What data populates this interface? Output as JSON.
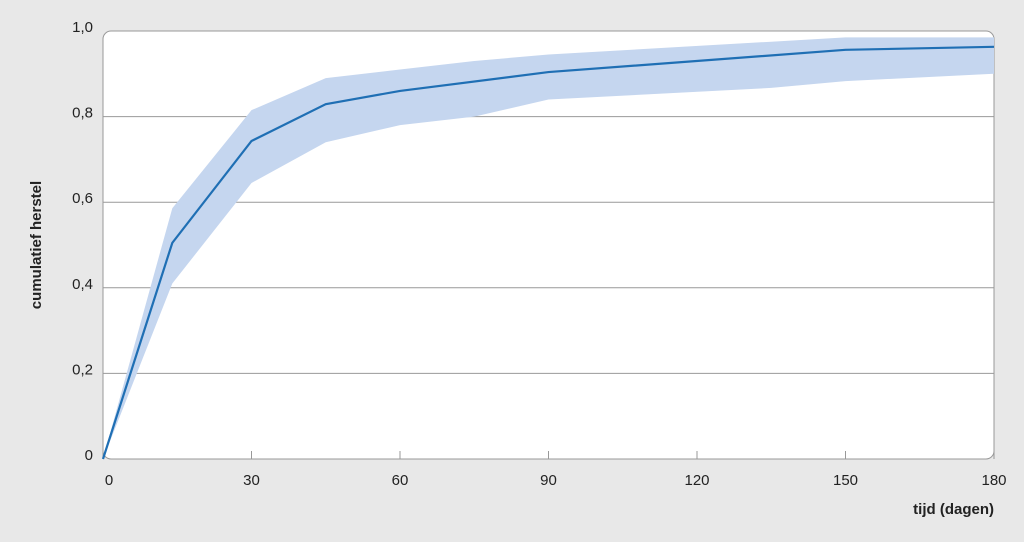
{
  "chart_data": {
    "type": "line",
    "xlabel": "tijd (dagen)",
    "ylabel": "cumulatief herstel",
    "series": [
      {
        "color": "#1f6fb4",
        "x": [
          0,
          14,
          30,
          45,
          60,
          90,
          150,
          180
        ],
        "values": [
          0,
          0.505,
          0.743,
          0.829,
          0.86,
          0.904,
          0.956,
          0.963
        ]
      }
    ],
    "band": {
      "color": "#c5d6ef",
      "x": [
        0,
        14,
        30,
        45,
        60,
        75,
        90,
        135,
        150,
        180
      ],
      "upper": [
        0,
        0.586,
        0.815,
        0.89,
        0.91,
        0.93,
        0.945,
        0.975,
        0.985,
        0.985
      ],
      "lower": [
        0,
        0.41,
        0.645,
        0.74,
        0.78,
        0.8,
        0.84,
        0.867,
        0.883,
        0.9
      ]
    },
    "xlim": [
      0,
      180
    ],
    "xticks": [
      0,
      30,
      60,
      90,
      120,
      150,
      180
    ],
    "ylim": [
      0,
      1
    ],
    "yticks": [
      0,
      {
        "value": 0.2,
        "label": "0,2"
      },
      {
        "value": 0.4,
        "label": "0,4"
      },
      {
        "value": 0.6,
        "label": "0,6"
      },
      {
        "value": 0.8,
        "label": "0,8"
      },
      {
        "value": 1,
        "label": "1,0"
      }
    ],
    "grid": true
  }
}
